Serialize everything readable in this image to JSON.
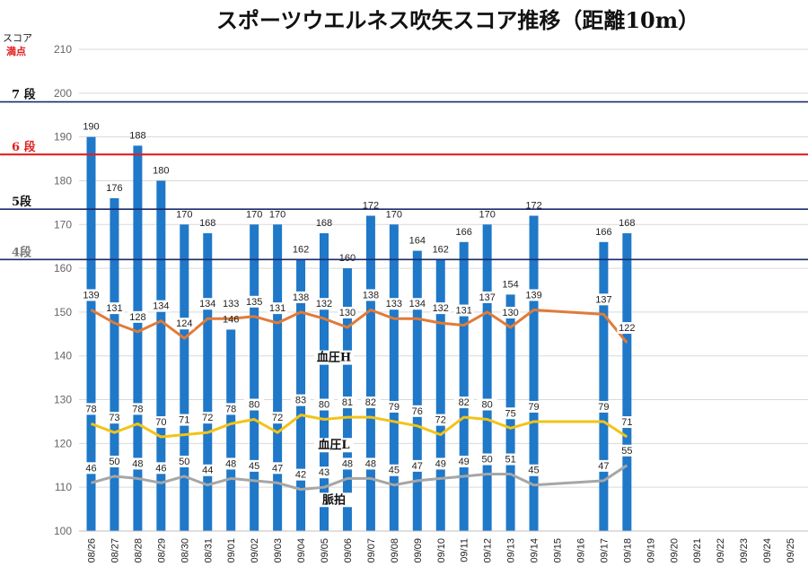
{
  "chart_data": {
    "type": "bar",
    "title": "スポーツウエルネス吹矢スコア推移（距離10m）",
    "ylabel_top": "スコア",
    "ylabel_max": "満点",
    "ylim": [
      100,
      210
    ],
    "yticks": [
      100,
      110,
      120,
      130,
      140,
      150,
      160,
      170,
      180,
      190,
      200,
      210
    ],
    "categories": [
      "08/26",
      "08/27",
      "08/28",
      "08/29",
      "08/30",
      "08/31",
      "09/01",
      "09/02",
      "09/03",
      "09/04",
      "09/05",
      "09/06",
      "09/07",
      "09/08",
      "09/09",
      "09/10",
      "09/11",
      "09/12",
      "09/13",
      "09/14",
      "09/15",
      "09/16",
      "09/17",
      "09/18",
      "09/19",
      "09/20",
      "09/21",
      "09/22",
      "09/23",
      "09/24",
      "09/25"
    ],
    "series": [
      {
        "name": "スコア",
        "kind": "bar",
        "color": "#1f78c8",
        "values": [
          190,
          176,
          188,
          180,
          170,
          168,
          146,
          170,
          170,
          162,
          168,
          160,
          172,
          170,
          164,
          162,
          166,
          170,
          154,
          172,
          null,
          null,
          166,
          168,
          null,
          null,
          null,
          null,
          null,
          null,
          null
        ],
        "labels": [
          "190",
          "176",
          "188",
          "180",
          "170",
          "168",
          "146",
          "170",
          "170",
          "162",
          "168",
          "160",
          "172",
          "170",
          "164",
          "162",
          "166",
          "170",
          "154",
          "172",
          "",
          "",
          "166",
          "168",
          "",
          "",
          "",
          "",
          "",
          "",
          ""
        ]
      },
      {
        "name": "血圧H",
        "kind": "line",
        "color": "#e07b39",
        "values": [
          150.5,
          147.5,
          145.5,
          148.0,
          144.0,
          148.5,
          148.5,
          149.0,
          147.5,
          150.0,
          148.5,
          146.5,
          150.5,
          148.5,
          148.5,
          147.5,
          147.0,
          150.0,
          146.5,
          150.5,
          null,
          null,
          149.5,
          143.0,
          null,
          null,
          null,
          null,
          null,
          null,
          null
        ],
        "labels": [
          "139",
          "131",
          "128",
          "134",
          "124",
          "134",
          "133",
          "135",
          "131",
          "138",
          "132",
          "130",
          "138",
          "133",
          "134",
          "132",
          "131",
          "137",
          "130",
          "139",
          "",
          "",
          "137",
          "122",
          "",
          "",
          "",
          "",
          "",
          "",
          ""
        ]
      },
      {
        "name": "血圧L",
        "kind": "line",
        "color": "#f2c318",
        "values": [
          124.5,
          122.5,
          124.5,
          121.5,
          122.0,
          122.5,
          124.5,
          125.5,
          122.5,
          126.5,
          125.5,
          126.0,
          126.0,
          125.0,
          124.0,
          122.0,
          126.0,
          125.5,
          123.5,
          125.0,
          null,
          null,
          125.0,
          121.5,
          null,
          null,
          null,
          null,
          null,
          null,
          null
        ],
        "labels": [
          "78",
          "73",
          "78",
          "70",
          "71",
          "72",
          "78",
          "80",
          "72",
          "83",
          "80",
          "81",
          "82",
          "79",
          "76",
          "72",
          "82",
          "80",
          "75",
          "79",
          "",
          "",
          "79",
          "71",
          "",
          "",
          "",
          "",
          "",
          "",
          ""
        ]
      },
      {
        "name": "脈拍",
        "kind": "line",
        "color": "#a6a6a6",
        "values": [
          111.0,
          112.5,
          112.0,
          111.0,
          112.5,
          110.5,
          112.0,
          111.5,
          111.0,
          109.5,
          110.0,
          112.0,
          112.0,
          110.5,
          111.5,
          112.0,
          112.5,
          113.0,
          113.0,
          110.5,
          null,
          null,
          111.5,
          115.0,
          null,
          null,
          null,
          null,
          null,
          null,
          null
        ],
        "labels": [
          "46",
          "50",
          "48",
          "46",
          "50",
          "44",
          "48",
          "45",
          "47",
          "42",
          "43",
          "48",
          "48",
          "45",
          "47",
          "49",
          "49",
          "50",
          "51",
          "45",
          "",
          "",
          "47",
          "55",
          "",
          "",
          "",
          "",
          "",
          "",
          ""
        ]
      }
    ],
    "levels": [
      {
        "label": "7 段",
        "value": 198,
        "color": "#1a2a6c"
      },
      {
        "label": "6 段",
        "value": 186,
        "color": "#e02020"
      },
      {
        "label": "5段",
        "value": 173.5,
        "color": "#1a2a6c"
      },
      {
        "label": "4段",
        "value": 162,
        "color": "#1a2a6c"
      }
    ],
    "series_captions": [
      {
        "text": "血圧H",
        "at_value": 139
      },
      {
        "text": "血圧L",
        "at_value": 119
      },
      {
        "text": "脈拍",
        "at_value": 106.5
      }
    ]
  }
}
